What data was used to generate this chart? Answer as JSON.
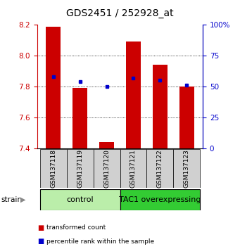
{
  "title": "GDS2451 / 252928_at",
  "samples": [
    "GSM137118",
    "GSM137119",
    "GSM137120",
    "GSM137121",
    "GSM137122",
    "GSM137123"
  ],
  "transformed_counts": [
    8.19,
    7.79,
    7.44,
    8.09,
    7.94,
    7.8
  ],
  "percentile_ranks": [
    58,
    54,
    50,
    57,
    55,
    51
  ],
  "bar_bottom": 7.4,
  "ylim_left": [
    7.4,
    8.2
  ],
  "ylim_right": [
    0,
    100
  ],
  "yticks_left": [
    7.4,
    7.6,
    7.8,
    8.0,
    8.2
  ],
  "yticks_right": [
    0,
    25,
    50,
    75,
    100
  ],
  "bar_color": "#cc0000",
  "dot_color": "#0000cc",
  "groups": [
    {
      "label": "control",
      "indices": [
        0,
        1,
        2
      ],
      "color": "#bbeeaa"
    },
    {
      "label": "TAC1 overexpressing",
      "indices": [
        3,
        4,
        5
      ],
      "color": "#33cc33"
    }
  ],
  "strain_label": "strain",
  "legend_items": [
    {
      "color": "#cc0000",
      "label": "transformed count"
    },
    {
      "color": "#0000cc",
      "label": "percentile rank within the sample"
    }
  ],
  "title_fontsize": 10,
  "tick_fontsize": 7.5,
  "sample_fontsize": 6.5,
  "group_fontsize": 8
}
